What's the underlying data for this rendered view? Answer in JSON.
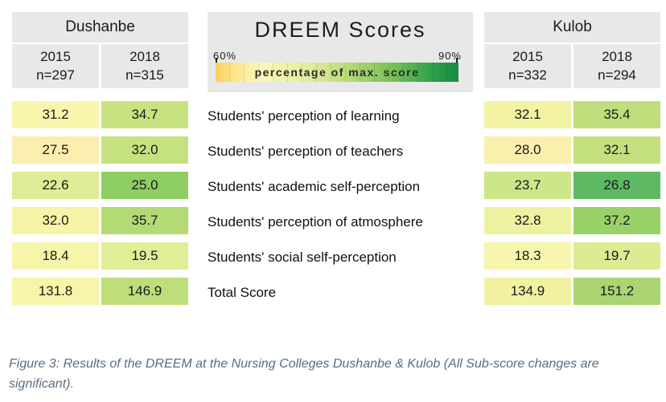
{
  "legend": {
    "title": "DREEM Scores",
    "min_label": "60%",
    "max_label": "90%",
    "bar_label": "percentage of max. score",
    "gradient_colors": [
      "#f9cf62",
      "#fce98f",
      "#fcf6b8",
      "#f3f2ab",
      "#e6ee9e",
      "#d2e58c",
      "#b7da77",
      "#99ce66",
      "#77c158",
      "#4fb050",
      "#289c4a",
      "#188c41"
    ]
  },
  "dushanbe": {
    "title": "Dushanbe",
    "col1": {
      "year": "2015",
      "n": "n=297"
    },
    "col2": {
      "year": "2018",
      "n": "n=315"
    }
  },
  "kulob": {
    "title": "Kulob",
    "col1": {
      "year": "2015",
      "n": "n=332"
    },
    "col2": {
      "year": "2018",
      "n": "n=294"
    }
  },
  "rows": [
    {
      "label": "Students' perception of learning",
      "d2015": {
        "v": "31.2",
        "bg": "#f8f6ad"
      },
      "d2018": {
        "v": "34.7",
        "bg": "#c8e281"
      },
      "k2015": {
        "v": "32.1",
        "bg": "#f2f3a3"
      },
      "k2018": {
        "v": "35.4",
        "bg": "#c0de7c"
      }
    },
    {
      "label": "Students' perception of teachers",
      "d2015": {
        "v": "27.5",
        "bg": "#fbeeae"
      },
      "d2018": {
        "v": "32.0",
        "bg": "#c6e17f"
      },
      "k2015": {
        "v": "28.0",
        "bg": "#f9f0ae"
      },
      "k2018": {
        "v": "32.1",
        "bg": "#c4e07e"
      }
    },
    {
      "label": "Students' academic self-perception",
      "d2015": {
        "v": "22.6",
        "bg": "#dfec95"
      },
      "d2018": {
        "v": "25.0",
        "bg": "#8fcd65"
      },
      "k2015": {
        "v": "23.7",
        "bg": "#cde687"
      },
      "k2018": {
        "v": "26.8",
        "bg": "#5eba62"
      }
    },
    {
      "label": "Students' perception of atmosphere",
      "d2015": {
        "v": "32.0",
        "bg": "#f5f4a7"
      },
      "d2018": {
        "v": "35.7",
        "bg": "#b3da74"
      },
      "k2015": {
        "v": "32.8",
        "bg": "#eef2a0"
      },
      "k2018": {
        "v": "37.2",
        "bg": "#99d169"
      }
    },
    {
      "label": "Students' social self-perception",
      "d2015": {
        "v": "18.4",
        "bg": "#f7f5aa"
      },
      "d2018": {
        "v": "19.5",
        "bg": "#e2ed97"
      },
      "k2015": {
        "v": "18.3",
        "bg": "#f8f6ac"
      },
      "k2018": {
        "v": "19.7",
        "bg": "#ddeb93"
      }
    },
    {
      "label": "Total Score",
      "d2015": {
        "v": "131.8",
        "bg": "#f6f5a9"
      },
      "d2018": {
        "v": "146.9",
        "bg": "#bede7b"
      },
      "k2015": {
        "v": "134.9",
        "bg": "#f0f2a2"
      },
      "k2018": {
        "v": "151.2",
        "bg": "#aad572"
      }
    }
  ],
  "caption": "Figure 3: Results of the DREEM at the Nursing Colleges Dushanbe & Kulob (All Sub-score changes are significant).",
  "chart_data": {
    "type": "heatmap",
    "title": "DREEM Scores",
    "legend": {
      "label": "percentage of max. score",
      "min": "60%",
      "max": "90%",
      "position": "top-center",
      "colormap": "yellow-to-green"
    },
    "categories": [
      "Students' perception of learning",
      "Students' perception of teachers",
      "Students' academic self-perception",
      "Students' perception of atmosphere",
      "Students' social self-perception",
      "Total Score"
    ],
    "series": [
      {
        "name": "Dushanbe 2015 (n=297)",
        "values": [
          31.2,
          27.5,
          22.6,
          32.0,
          18.4,
          131.8
        ]
      },
      {
        "name": "Dushanbe 2018 (n=315)",
        "values": [
          34.7,
          32.0,
          25.0,
          35.7,
          19.5,
          146.9
        ]
      },
      {
        "name": "Kulob 2015 (n=332)",
        "values": [
          32.1,
          28.0,
          23.7,
          32.8,
          18.3,
          134.9
        ]
      },
      {
        "name": "Kulob 2018 (n=294)",
        "values": [
          35.4,
          32.1,
          26.8,
          37.2,
          19.7,
          151.2
        ]
      }
    ]
  }
}
